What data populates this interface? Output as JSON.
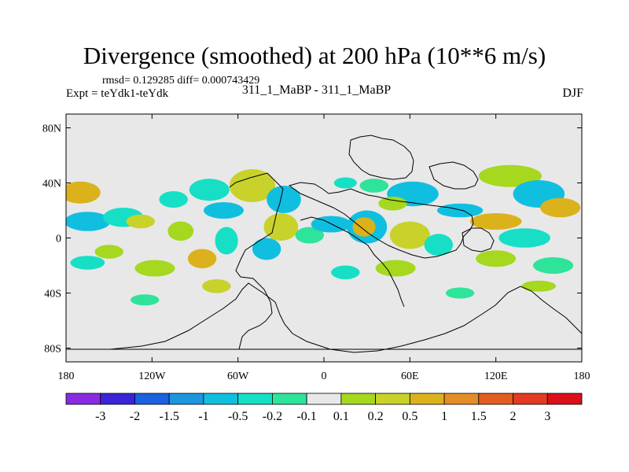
{
  "chart_data": {
    "type": "heatmap",
    "title": "Divergence (smoothed) at 200 hPa (10**6 m/s)",
    "stats": {
      "rmsd_label": "rmsd=",
      "rmsd": "0.129285",
      "diff_label": "diff=",
      "diff": "0.000743429",
      "text": "rmsd= 0.129285  diff= 0.000743429"
    },
    "experiment": "Expt = teYdk1-teYdk",
    "center_label": "311_1_MaBP - 311_1_MaBP",
    "season": "DJF",
    "x_axis": {
      "range": [
        -180,
        180
      ],
      "ticks": [
        -180,
        -120,
        -60,
        0,
        60,
        120,
        180
      ],
      "tick_labels": [
        "180",
        "120W",
        "60W",
        "0",
        "60E",
        "120E",
        "180"
      ]
    },
    "y_axis": {
      "range": [
        -90,
        90
      ],
      "ticks": [
        80,
        40,
        0,
        -40,
        -80
      ],
      "tick_labels": [
        "80N",
        "40N",
        "0",
        "40S",
        "80S"
      ]
    },
    "colorbar": {
      "levels": [
        "-3",
        "-2",
        "-1.5",
        "-1",
        "-0.5",
        "-0.2",
        "-0.1",
        "0.1",
        "0.2",
        "0.5",
        "1",
        "1.5",
        "2",
        "3"
      ],
      "colors": [
        "#8a2be2",
        "#3a24d8",
        "#1a62de",
        "#1c96df",
        "#10bfe0",
        "#16dfc5",
        "#2ee39a",
        "#e8e8e8",
        "#a5d81e",
        "#c8d22a",
        "#dbb21c",
        "#e38d26",
        "#e35c22",
        "#e23a24",
        "#d9101a"
      ]
    },
    "field_blobs": [
      {
        "lon": -170,
        "lat": 33,
        "rlon": 14,
        "rlat": 8,
        "color": "#dbb21c"
      },
      {
        "lon": -165,
        "lat": 12,
        "rlon": 16,
        "rlat": 7,
        "color": "#10bfe0"
      },
      {
        "lon": -140,
        "lat": 15,
        "rlon": 14,
        "rlat": 7,
        "color": "#16dfc5"
      },
      {
        "lon": -128,
        "lat": 12,
        "rlon": 10,
        "rlat": 5,
        "color": "#c8d22a"
      },
      {
        "lon": -150,
        "lat": -10,
        "rlon": 10,
        "rlat": 5,
        "color": "#a5d81e"
      },
      {
        "lon": -165,
        "lat": -18,
        "rlon": 12,
        "rlat": 5,
        "color": "#16dfc5"
      },
      {
        "lon": -118,
        "lat": -22,
        "rlon": 14,
        "rlat": 6,
        "color": "#a5d81e"
      },
      {
        "lon": -125,
        "lat": -45,
        "rlon": 10,
        "rlat": 4,
        "color": "#2ee39a"
      },
      {
        "lon": -105,
        "lat": 28,
        "rlon": 10,
        "rlat": 6,
        "color": "#16dfc5"
      },
      {
        "lon": -100,
        "lat": 5,
        "rlon": 9,
        "rlat": 7,
        "color": "#a5d81e"
      },
      {
        "lon": -80,
        "lat": 35,
        "rlon": 14,
        "rlat": 8,
        "color": "#16dfc5"
      },
      {
        "lon": -50,
        "lat": 38,
        "rlon": 16,
        "rlat": 12,
        "color": "#c8d22a"
      },
      {
        "lon": -70,
        "lat": 20,
        "rlon": 14,
        "rlat": 6,
        "color": "#10bfe0"
      },
      {
        "lon": -68,
        "lat": -2,
        "rlon": 8,
        "rlat": 10,
        "color": "#16dfc5"
      },
      {
        "lon": -85,
        "lat": -15,
        "rlon": 10,
        "rlat": 7,
        "color": "#dbb21c"
      },
      {
        "lon": -75,
        "lat": -35,
        "rlon": 10,
        "rlat": 5,
        "color": "#c8d22a"
      },
      {
        "lon": -28,
        "lat": 28,
        "rlon": 12,
        "rlat": 10,
        "color": "#10bfe0"
      },
      {
        "lon": -30,
        "lat": 8,
        "rlon": 12,
        "rlat": 10,
        "color": "#c8d22a"
      },
      {
        "lon": -40,
        "lat": -8,
        "rlon": 10,
        "rlat": 8,
        "color": "#10bfe0"
      },
      {
        "lon": -10,
        "lat": 2,
        "rlon": 10,
        "rlat": 6,
        "color": "#2ee39a"
      },
      {
        "lon": 5,
        "lat": 10,
        "rlon": 14,
        "rlat": 6,
        "color": "#10bfe0"
      },
      {
        "lon": 30,
        "lat": 8,
        "rlon": 14,
        "rlat": 12,
        "color": "#10bfe0"
      },
      {
        "lon": 28,
        "lat": 8,
        "rlon": 8,
        "rlat": 7,
        "color": "#dbb21c"
      },
      {
        "lon": 35,
        "lat": 38,
        "rlon": 10,
        "rlat": 5,
        "color": "#2ee39a"
      },
      {
        "lon": 15,
        "lat": 40,
        "rlon": 8,
        "rlat": 4,
        "color": "#16dfc5"
      },
      {
        "lon": 62,
        "lat": 32,
        "rlon": 18,
        "rlat": 9,
        "color": "#10bfe0"
      },
      {
        "lon": 48,
        "lat": 25,
        "rlon": 10,
        "rlat": 5,
        "color": "#a5d81e"
      },
      {
        "lon": 60,
        "lat": 2,
        "rlon": 14,
        "rlat": 10,
        "color": "#c8d22a"
      },
      {
        "lon": 80,
        "lat": -5,
        "rlon": 10,
        "rlat": 8,
        "color": "#16dfc5"
      },
      {
        "lon": 50,
        "lat": -22,
        "rlon": 14,
        "rlat": 6,
        "color": "#a5d81e"
      },
      {
        "lon": 15,
        "lat": -25,
        "rlon": 10,
        "rlat": 5,
        "color": "#16dfc5"
      },
      {
        "lon": 95,
        "lat": 20,
        "rlon": 16,
        "rlat": 5,
        "color": "#10bfe0"
      },
      {
        "lon": 130,
        "lat": 45,
        "rlon": 22,
        "rlat": 8,
        "color": "#a5d81e"
      },
      {
        "lon": 150,
        "lat": 32,
        "rlon": 18,
        "rlat": 10,
        "color": "#10bfe0"
      },
      {
        "lon": 165,
        "lat": 22,
        "rlon": 14,
        "rlat": 7,
        "color": "#dbb21c"
      },
      {
        "lon": 120,
        "lat": 12,
        "rlon": 18,
        "rlat": 6,
        "color": "#dbb21c"
      },
      {
        "lon": 140,
        "lat": 0,
        "rlon": 18,
        "rlat": 7,
        "color": "#16dfc5"
      },
      {
        "lon": 120,
        "lat": -15,
        "rlon": 14,
        "rlat": 6,
        "color": "#a5d81e"
      },
      {
        "lon": 160,
        "lat": -20,
        "rlon": 14,
        "rlat": 6,
        "color": "#2ee39a"
      },
      {
        "lon": 150,
        "lat": -35,
        "rlon": 12,
        "rlat": 4,
        "color": "#a5d81e"
      },
      {
        "lon": 95,
        "lat": -40,
        "rlon": 10,
        "rlat": 4,
        "color": "#2ee39a"
      }
    ]
  }
}
